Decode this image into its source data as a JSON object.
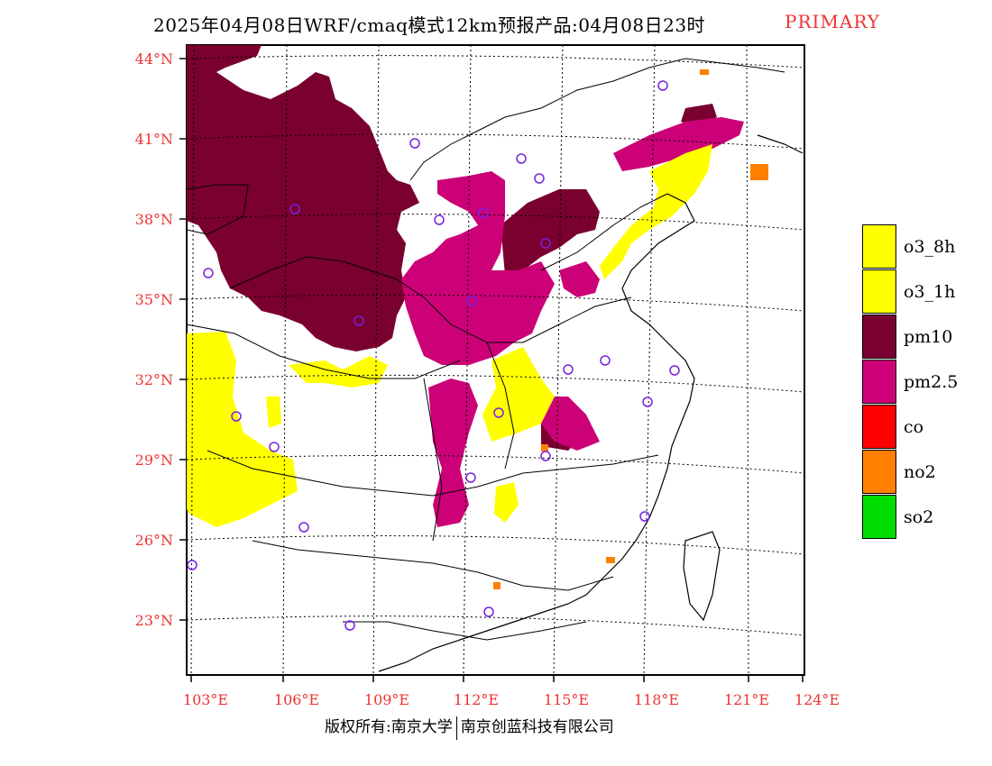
{
  "title": {
    "main": "2025年04月08日WRF/cmaq模式12km预报产品:04月08日23时",
    "tag": "PRIMARY"
  },
  "axes": {
    "lat_labels": [
      "44°N",
      "41°N",
      "38°N",
      "35°N",
      "32°N",
      "29°N",
      "26°N",
      "23°N"
    ],
    "lon_labels": [
      "103°E",
      "106°E",
      "109°E",
      "112°E",
      "115°E",
      "118°E",
      "121°E",
      "124°E"
    ],
    "label_color": "#ee3333"
  },
  "legend": [
    {
      "label": "o3_8h",
      "color": "#ffff00"
    },
    {
      "label": "o3_1h",
      "color": "#ffff00"
    },
    {
      "label": "pm10",
      "color": "#7a0030"
    },
    {
      "label": "pm2.5",
      "color": "#cc0077"
    },
    {
      "label": "co",
      "color": "#ff0000"
    },
    {
      "label": "no2",
      "color": "#ff7f00"
    },
    {
      "label": "so2",
      "color": "#00dd00"
    }
  ],
  "copyright": {
    "left": "版权所有:南京大学",
    "right": "南京创蓝科技有限公司"
  }
}
